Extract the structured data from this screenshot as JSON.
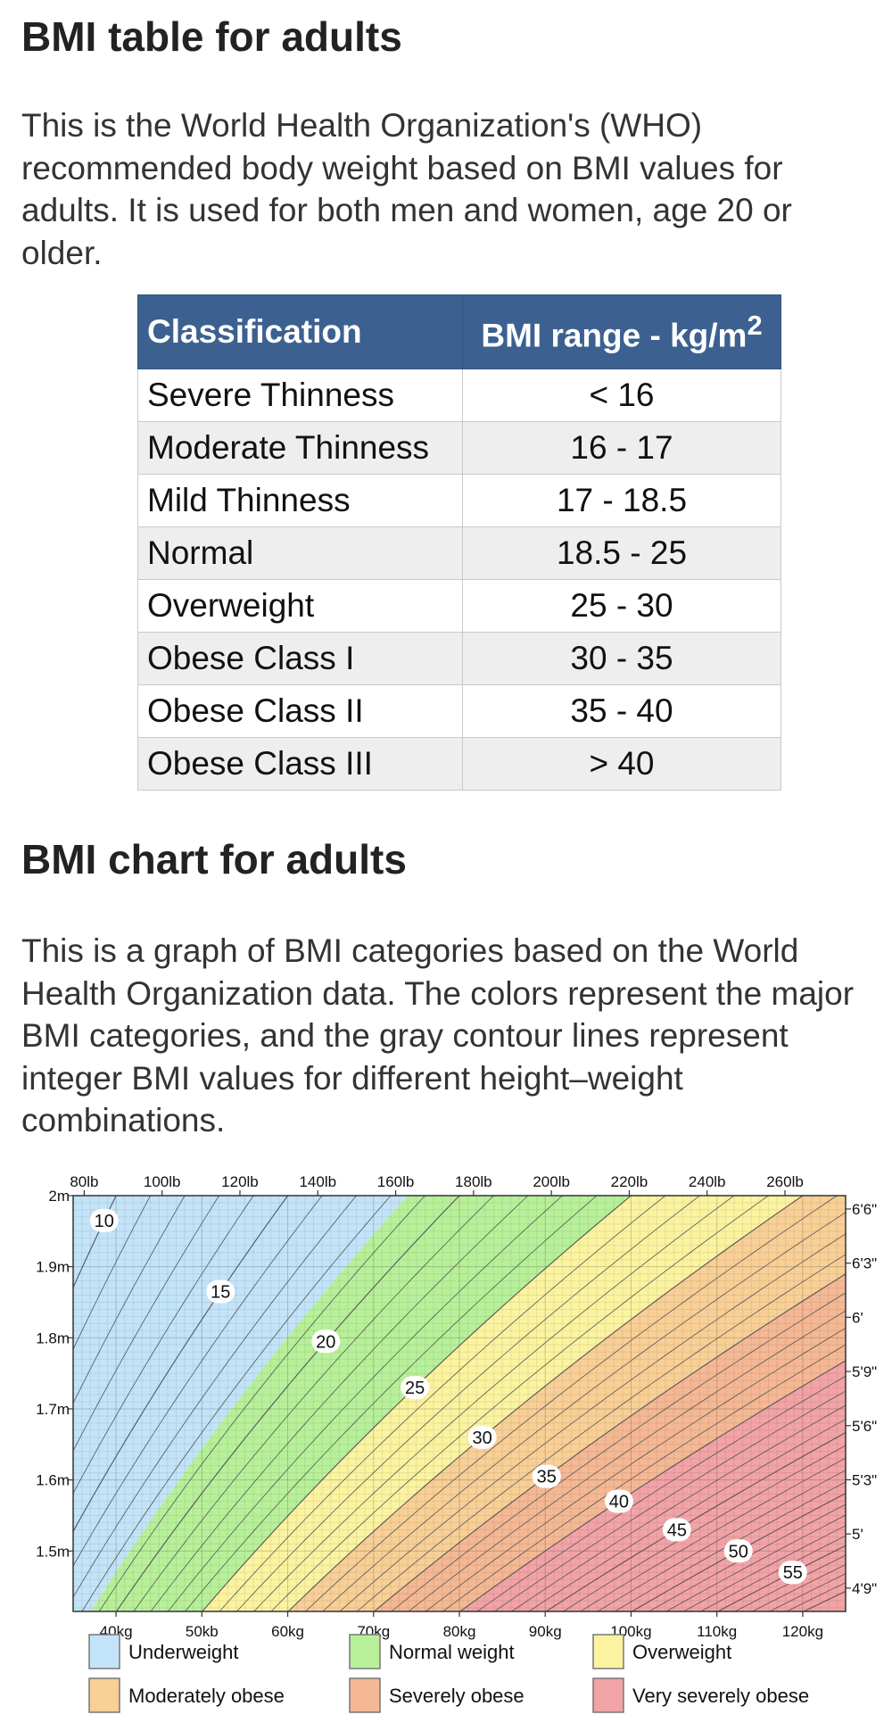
{
  "section1": {
    "title": "BMI table for adults",
    "description": "This is the World Health Organization's (WHO) recommended body weight based on BMI values for adults. It is used for both men and women, age 20 or older."
  },
  "table": {
    "headers": {
      "classification": "Classification",
      "range": "BMI range - kg/m",
      "range_sup": "2"
    },
    "rows": [
      {
        "classification": "Severe Thinness",
        "range": "< 16"
      },
      {
        "classification": "Moderate Thinness",
        "range": "16 - 17"
      },
      {
        "classification": "Mild Thinness",
        "range": "17 - 18.5"
      },
      {
        "classification": "Normal",
        "range": "18.5 - 25"
      },
      {
        "classification": "Overweight",
        "range": "25 - 30"
      },
      {
        "classification": "Obese Class I",
        "range": "30 - 35"
      },
      {
        "classification": "Obese Class II",
        "range": "35 - 40"
      },
      {
        "classification": "Obese Class III",
        "range": "> 40"
      }
    ]
  },
  "section2": {
    "title": "BMI chart for adults",
    "description": "This is a graph of BMI categories based on the World Health Organization data. The colors represent the major BMI categories, and the gray contour lines represent integer BMI values for different height–weight combinations."
  },
  "chart_data": {
    "type": "heatmap",
    "x_unit": "kg",
    "y_unit": "m",
    "xlim": [
      35,
      125
    ],
    "ylim": [
      1.415,
      2.0
    ],
    "x_ticks": [
      40,
      50,
      60,
      70,
      80,
      90,
      100,
      110,
      120
    ],
    "x_tick_labels": [
      "40kg",
      "50kb",
      "60kg",
      "70kg",
      "80kg",
      "90kg",
      "100kg",
      "110kg",
      "120kg"
    ],
    "y_ticks": [
      1.5,
      1.6,
      1.7,
      1.8,
      1.9,
      2.0
    ],
    "y_tick_labels": [
      "1.5m",
      "1.6m",
      "1.7m",
      "1.8m",
      "1.9m",
      "2m"
    ],
    "top_ticks_lb": [
      80,
      100,
      120,
      140,
      160,
      180,
      200,
      220,
      240,
      260
    ],
    "top_tick_labels": [
      "80lb",
      "100lb",
      "120lb",
      "140lb",
      "160lb",
      "180lb",
      "200lb",
      "220lb",
      "240lb",
      "260lb"
    ],
    "right_ticks_in": [
      57,
      60,
      63,
      66,
      69,
      72,
      75,
      78
    ],
    "right_tick_labels": [
      "4'9\"",
      "5'",
      "5'3\"",
      "5'6\"",
      "5'9\"",
      "6'",
      "6'3\"",
      "6'6\""
    ],
    "contour_bmi_range": [
      10,
      60
    ],
    "contour_labels": [
      {
        "bmi": 10,
        "text": "10"
      },
      {
        "bmi": 15,
        "text": "15"
      },
      {
        "bmi": 20,
        "text": "20"
      },
      {
        "bmi": 25,
        "text": "25"
      },
      {
        "bmi": 30,
        "text": "30"
      },
      {
        "bmi": 35,
        "text": "35"
      },
      {
        "bmi": 40,
        "text": "40"
      },
      {
        "bmi": 45,
        "text": "45"
      },
      {
        "bmi": 50,
        "text": "50"
      },
      {
        "bmi": 55,
        "text": "55"
      }
    ],
    "categories": [
      {
        "name": "Underweight",
        "from": 0,
        "to": 18.5,
        "color": "#c3e3f8"
      },
      {
        "name": "Normal weight",
        "from": 18.5,
        "to": 25,
        "color": "#b8f09a"
      },
      {
        "name": "Overweight",
        "from": 25,
        "to": 30,
        "color": "#fbf3a0"
      },
      {
        "name": "Moderately obese",
        "from": 30,
        "to": 35,
        "color": "#f8cf96"
      },
      {
        "name": "Severely obese",
        "from": 35,
        "to": 40,
        "color": "#f5b894"
      },
      {
        "name": "Very severely obese",
        "from": 40,
        "to": 100,
        "color": "#f2a3a6"
      }
    ],
    "grid": true,
    "legend_position": "bottom"
  }
}
